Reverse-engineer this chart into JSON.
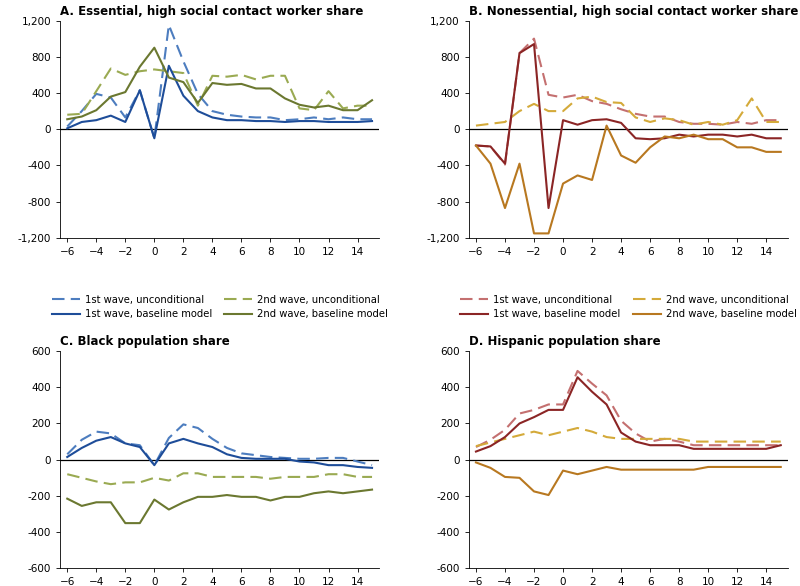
{
  "x": [
    -6,
    -5,
    -4,
    -3,
    -2,
    -1,
    0,
    1,
    2,
    3,
    4,
    5,
    6,
    7,
    8,
    9,
    10,
    11,
    12,
    13,
    14,
    15
  ],
  "panel_A": {
    "title": "A. Essential, high social contact worker share",
    "ylim": [
      -1200,
      1200
    ],
    "yticks": [
      -1200,
      -800,
      -400,
      0,
      400,
      800,
      1200
    ],
    "wave1_uncond": [
      30,
      200,
      390,
      350,
      130,
      430,
      -100,
      1150,
      750,
      390,
      200,
      160,
      140,
      130,
      130,
      100,
      110,
      130,
      110,
      130,
      110,
      110
    ],
    "wave1_base": [
      10,
      80,
      100,
      150,
      80,
      430,
      -100,
      700,
      370,
      200,
      130,
      100,
      100,
      90,
      90,
      80,
      90,
      90,
      80,
      80,
      80,
      90
    ],
    "wave2_uncond": [
      160,
      170,
      420,
      670,
      600,
      640,
      660,
      640,
      620,
      260,
      590,
      580,
      600,
      550,
      590,
      590,
      230,
      210,
      420,
      230,
      260,
      260
    ],
    "wave2_base": [
      110,
      140,
      210,
      360,
      410,
      690,
      900,
      570,
      520,
      290,
      510,
      490,
      500,
      450,
      450,
      340,
      270,
      240,
      260,
      210,
      210,
      320
    ]
  },
  "panel_B": {
    "title": "B. Nonessential, high social contact worker share",
    "ylim": [
      -1200,
      1200
    ],
    "yticks": [
      -1200,
      -800,
      -400,
      0,
      400,
      800,
      1200
    ],
    "wave1_uncond": [
      -180,
      -190,
      -390,
      840,
      1000,
      380,
      350,
      380,
      310,
      280,
      220,
      170,
      140,
      140,
      80,
      60,
      60,
      50,
      80,
      60,
      100,
      100
    ],
    "wave1_base": [
      -180,
      -190,
      -380,
      840,
      940,
      -870,
      100,
      50,
      100,
      110,
      70,
      -100,
      -110,
      -100,
      -60,
      -80,
      -60,
      -60,
      -80,
      -60,
      -100,
      -100
    ],
    "wave2_uncond": [
      40,
      60,
      80,
      200,
      280,
      200,
      200,
      340,
      360,
      300,
      290,
      130,
      80,
      120,
      100,
      50,
      80,
      50,
      100,
      340,
      80,
      80
    ],
    "wave2_base": [
      -180,
      -380,
      -870,
      -380,
      -1150,
      -1150,
      -600,
      -510,
      -560,
      40,
      -290,
      -370,
      -200,
      -80,
      -100,
      -60,
      -110,
      -110,
      -200,
      -200,
      -250,
      -250
    ]
  },
  "panel_C": {
    "title": "C. Black population share",
    "ylim": [
      -600,
      600
    ],
    "yticks": [
      -600,
      -400,
      -200,
      0,
      200,
      400,
      600
    ],
    "wave1_uncond": [
      30,
      110,
      155,
      145,
      90,
      80,
      -30,
      120,
      195,
      175,
      115,
      65,
      35,
      25,
      15,
      10,
      5,
      5,
      10,
      10,
      -10,
      -30
    ],
    "wave1_base": [
      15,
      65,
      105,
      125,
      90,
      70,
      -30,
      90,
      115,
      90,
      70,
      30,
      10,
      5,
      5,
      5,
      -10,
      -15,
      -30,
      -30,
      -40,
      -45
    ],
    "wave2_uncond": [
      -80,
      -100,
      -120,
      -135,
      -125,
      -125,
      -100,
      -115,
      -75,
      -75,
      -95,
      -95,
      -95,
      -95,
      -105,
      -95,
      -95,
      -95,
      -80,
      -80,
      -95,
      -95
    ],
    "wave2_base": [
      -215,
      -255,
      -235,
      -235,
      -350,
      -350,
      -220,
      -275,
      -235,
      -205,
      -205,
      -195,
      -205,
      -205,
      -225,
      -205,
      -205,
      -185,
      -175,
      -185,
      -175,
      -165
    ]
  },
  "panel_D": {
    "title": "D. Hispanic population share",
    "ylim": [
      -600,
      600
    ],
    "yticks": [
      -600,
      -400,
      -200,
      0,
      200,
      400,
      600
    ],
    "wave1_uncond": [
      70,
      110,
      165,
      255,
      275,
      305,
      305,
      490,
      420,
      355,
      215,
      145,
      100,
      115,
      100,
      80,
      80,
      80,
      80,
      80,
      80,
      80
    ],
    "wave1_base": [
      45,
      75,
      125,
      200,
      235,
      275,
      275,
      455,
      375,
      305,
      150,
      100,
      80,
      80,
      80,
      60,
      60,
      60,
      60,
      60,
      60,
      80
    ],
    "wave2_uncond": [
      75,
      95,
      115,
      135,
      155,
      135,
      155,
      175,
      155,
      125,
      115,
      115,
      115,
      115,
      115,
      100,
      100,
      100,
      100,
      100,
      100,
      100
    ],
    "wave2_base": [
      -15,
      -45,
      -95,
      -100,
      -175,
      -195,
      -60,
      -80,
      -60,
      -40,
      -55,
      -55,
      -55,
      -55,
      -55,
      -55,
      -40,
      -40,
      -40,
      -40,
      -40,
      -40
    ]
  },
  "blue_dashed": "#4d7dbf",
  "blue_solid": "#1e4d99",
  "olive_dashed": "#9aaa52",
  "olive_solid": "#6b7830",
  "red_dashed": "#c47070",
  "red_solid": "#8b2525",
  "gold_dashed": "#d4aa3a",
  "gold_solid": "#b87820",
  "legend_labels": [
    "1st wave, unconditional",
    "1st wave, baseline model",
    "2nd wave, unconditional",
    "2nd wave, baseline model"
  ]
}
